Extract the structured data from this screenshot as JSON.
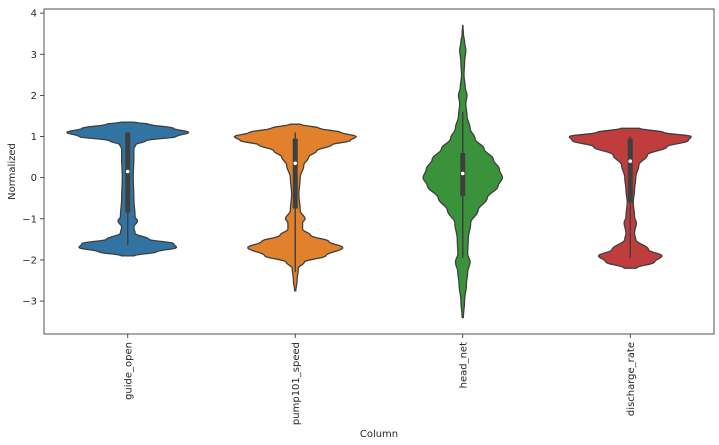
{
  "chart_data": {
    "type": "violin",
    "xlabel": "Column",
    "ylabel": "Normalized",
    "ylim": [
      -3.8,
      4.1
    ],
    "yticks": [
      -3,
      -2,
      -1,
      0,
      1,
      2,
      3,
      4
    ],
    "grid": false,
    "legend": "none",
    "categories": [
      "guide_open",
      "pump101_speed",
      "head_net",
      "discharge_rate"
    ],
    "series": [
      {
        "color": "#3274a1",
        "median": 0.15,
        "q1": -0.85,
        "q3": 1.1,
        "whisker_low": -1.65,
        "whisker_high": 1.1,
        "extent": [
          -1.9,
          1.35
        ],
        "profile": [
          [
            -1.9,
            0.1
          ],
          [
            -1.8,
            0.48
          ],
          [
            -1.7,
            0.8
          ],
          [
            -1.6,
            0.75
          ],
          [
            -1.5,
            0.35
          ],
          [
            -1.35,
            0.12
          ],
          [
            -1.2,
            0.1
          ],
          [
            -1.05,
            0.16
          ],
          [
            -0.95,
            0.12
          ],
          [
            -0.5,
            0.1
          ],
          [
            0,
            0.09
          ],
          [
            0.5,
            0.1
          ],
          [
            0.7,
            0.1
          ],
          [
            0.8,
            0.13
          ],
          [
            0.9,
            0.3
          ],
          [
            1.0,
            0.8
          ],
          [
            1.1,
            1.0
          ],
          [
            1.2,
            0.75
          ],
          [
            1.3,
            0.35
          ],
          [
            1.35,
            0.1
          ]
        ]
      },
      {
        "color": "#e1812c",
        "median": 0.35,
        "q1": -0.75,
        "q3": 0.95,
        "whisker_low": -2.3,
        "whisker_high": 1.1,
        "extent": [
          -2.75,
          1.3
        ],
        "profile": [
          [
            -2.75,
            0.01
          ],
          [
            -2.5,
            0.03
          ],
          [
            -2.2,
            0.05
          ],
          [
            -2.05,
            0.15
          ],
          [
            -1.9,
            0.5
          ],
          [
            -1.7,
            0.78
          ],
          [
            -1.55,
            0.55
          ],
          [
            -1.4,
            0.25
          ],
          [
            -1.25,
            0.12
          ],
          [
            -1.1,
            0.12
          ],
          [
            -1.0,
            0.16
          ],
          [
            -0.8,
            0.08
          ],
          [
            -0.4,
            0.06
          ],
          [
            0.0,
            0.08
          ],
          [
            0.3,
            0.14
          ],
          [
            0.5,
            0.22
          ],
          [
            0.65,
            0.35
          ],
          [
            0.8,
            0.6
          ],
          [
            0.9,
            0.9
          ],
          [
            1.0,
            1.0
          ],
          [
            1.1,
            0.75
          ],
          [
            1.2,
            0.4
          ],
          [
            1.3,
            0.08
          ]
        ]
      },
      {
        "color": "#3a923a",
        "median": 0.1,
        "q1": -0.45,
        "q3": 0.6,
        "whisker_low": -1.95,
        "whisker_high": 1.6,
        "extent": [
          -3.4,
          3.7
        ],
        "profile": [
          [
            -3.4,
            0.01
          ],
          [
            -3.0,
            0.03
          ],
          [
            -2.6,
            0.06
          ],
          [
            -2.3,
            0.08
          ],
          [
            -2.05,
            0.12
          ],
          [
            -1.85,
            0.08
          ],
          [
            -1.5,
            0.09
          ],
          [
            -1.1,
            0.13
          ],
          [
            -0.8,
            0.25
          ],
          [
            -0.5,
            0.4
          ],
          [
            -0.2,
            0.58
          ],
          [
            0.0,
            0.65
          ],
          [
            0.2,
            0.6
          ],
          [
            0.45,
            0.5
          ],
          [
            0.7,
            0.35
          ],
          [
            0.95,
            0.2
          ],
          [
            1.2,
            0.12
          ],
          [
            1.5,
            0.07
          ],
          [
            1.8,
            0.05
          ],
          [
            2.0,
            0.07
          ],
          [
            2.2,
            0.04
          ],
          [
            2.5,
            0.02
          ],
          [
            2.8,
            0.03
          ],
          [
            3.1,
            0.05
          ],
          [
            3.3,
            0.03
          ],
          [
            3.5,
            0.01
          ],
          [
            3.7,
            0.003
          ]
        ]
      },
      {
        "color": "#c03d3e",
        "median": 0.4,
        "q1": -0.6,
        "q3": 0.95,
        "whisker_low": -1.95,
        "whisker_high": 1.0,
        "extent": [
          -2.2,
          1.2
        ],
        "profile": [
          [
            -2.2,
            0.1
          ],
          [
            -2.05,
            0.4
          ],
          [
            -1.9,
            0.52
          ],
          [
            -1.75,
            0.3
          ],
          [
            -1.5,
            0.09
          ],
          [
            -1.35,
            0.07
          ],
          [
            -1.1,
            0.1
          ],
          [
            -0.95,
            0.07
          ],
          [
            -0.6,
            0.05
          ],
          [
            -0.3,
            0.07
          ],
          [
            0.0,
            0.09
          ],
          [
            0.3,
            0.14
          ],
          [
            0.55,
            0.28
          ],
          [
            0.75,
            0.6
          ],
          [
            0.9,
            0.95
          ],
          [
            1.0,
            1.0
          ],
          [
            1.1,
            0.55
          ],
          [
            1.2,
            0.15
          ]
        ]
      }
    ]
  }
}
